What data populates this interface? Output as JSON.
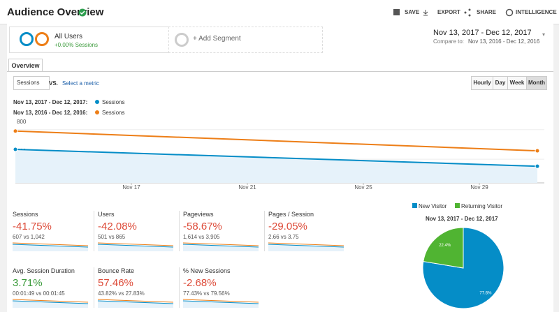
{
  "header": {
    "title": "Audience Overview",
    "actions": [
      "SAVE",
      "EXPORT",
      "SHARE",
      "INTELLIGENCE"
    ]
  },
  "segments": {
    "name": "All Users",
    "detail": "+0.00% Sessions",
    "add": "+ Add Segment"
  },
  "date_range": {
    "current": "Nov 13, 2017 - Dec 12, 2017",
    "compare_label": "Compare to:",
    "compare": "Nov 13, 2016 - Dec 12, 2016"
  },
  "tab": "Overview",
  "controls": {
    "metric": "Sessions",
    "vs": "VS.",
    "select": "Select a metric",
    "granularity": [
      "Hourly",
      "Day",
      "Week",
      "Month"
    ]
  },
  "chart_data": [
    {
      "type": "line",
      "series": [
        {
          "name": "Sessions",
          "period": "Nov 13, 2017 - Dec 12, 2017:",
          "color": "#058dc7",
          "x": [
            0,
            18
          ],
          "values": [
            533,
            305
          ]
        },
        {
          "name": "Sessions",
          "period": "Nov 13, 2016 - Dec 12, 2016:",
          "color": "#ed7e17",
          "x": [
            0,
            18
          ],
          "values": [
            781,
            514
          ]
        }
      ],
      "xlim": [
        0,
        18
      ],
      "xticks": [
        {
          "value": 4,
          "label": "Nov 17"
        },
        {
          "value": 8,
          "label": "Nov 21"
        },
        {
          "value": 12,
          "label": "Nov 25"
        },
        {
          "value": 16,
          "label": "Nov 29"
        }
      ],
      "ylim": [
        80,
        930
      ],
      "yticks": [
        400,
        800
      ]
    },
    {
      "type": "pie",
      "title": "Nov 13, 2017 - Dec 12, 2017",
      "categories": [
        "New Visitor",
        "Returning Visitor"
      ],
      "colors": [
        "#058dc7",
        "#50b432"
      ],
      "values": [
        77.6,
        22.4
      ],
      "value_labels": [
        "77.6%",
        "22.4%"
      ]
    }
  ],
  "metrics": [
    {
      "label": "Sessions",
      "change": "-41.75%",
      "compare": "607 vs 1,042"
    },
    {
      "label": "Users",
      "change": "-42.08%",
      "compare": "501 vs 865"
    },
    {
      "label": "Pageviews",
      "change": "-58.67%",
      "compare": "1,614 vs 3,905"
    },
    {
      "label": "Pages / Session",
      "change": "-29.05%",
      "compare": "2.66 vs 3.75"
    },
    {
      "label": "Avg. Session Duration",
      "change": "3.71%",
      "compare": "00:01:49 vs 00:01:45"
    },
    {
      "label": "Bounce Rate",
      "change": "57.46%",
      "compare": "43.82% vs 27.83%"
    },
    {
      "label": "% New Sessions",
      "change": "-2.68%",
      "compare": "77.43% vs 79.56%"
    }
  ]
}
